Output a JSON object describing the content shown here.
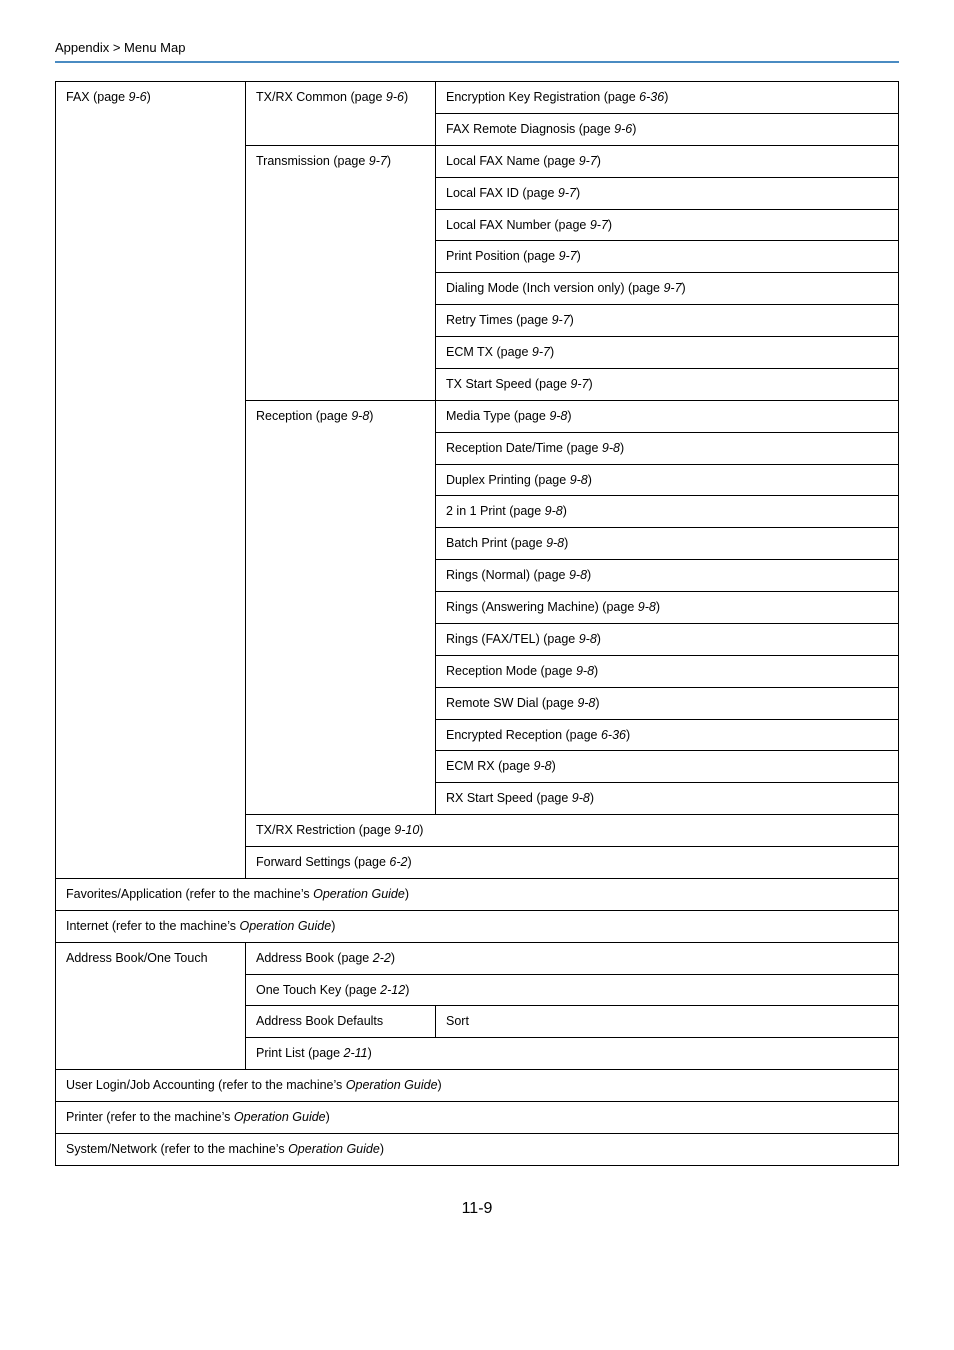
{
  "header": {
    "breadcrumb": "Appendix > Menu Map"
  },
  "colors": {
    "rule": "#4a8bc2",
    "border": "#000000",
    "text": "#000000",
    "background": "#ffffff"
  },
  "menu": {
    "fax": {
      "label": "FAX (page ",
      "page": "9-6",
      "close": ")",
      "txrx_common": {
        "label": "TX/RX Common (page ",
        "page": "9-6",
        "close": ")",
        "items": [
          {
            "text": "Encryption Key Registration (page ",
            "page": "6-36",
            "close": ")"
          },
          {
            "text": "FAX Remote Diagnosis (page ",
            "page": "9-6",
            "close": ")"
          }
        ]
      },
      "transmission": {
        "label": "Transmission (page ",
        "page": "9-7",
        "close": ")",
        "items": [
          {
            "text": "Local FAX Name (page ",
            "page": "9-7",
            "close": ")"
          },
          {
            "text": "Local FAX ID (page ",
            "page": "9-7",
            "close": ")"
          },
          {
            "text": "Local FAX Number (page ",
            "page": "9-7",
            "close": ")"
          },
          {
            "text": "Print Position (page ",
            "page": "9-7",
            "close": ")"
          },
          {
            "text": "Dialing Mode (Inch version only) (page ",
            "page": "9-7",
            "close": ")"
          },
          {
            "text": "Retry Times (page ",
            "page": "9-7",
            "close": ")"
          },
          {
            "text": "ECM TX (page ",
            "page": "9-7",
            "close": ")"
          },
          {
            "text": "TX Start Speed (page ",
            "page": "9-7",
            "close": ")"
          }
        ]
      },
      "reception": {
        "label": "Reception (page ",
        "page": "9-8",
        "close": ")",
        "items": [
          {
            "text": "Media Type (page ",
            "page": "9-8",
            "close": ")"
          },
          {
            "text": "Reception Date/Time (page ",
            "page": "9-8",
            "close": ")"
          },
          {
            "text": "Duplex Printing (page ",
            "page": "9-8",
            "close": ")"
          },
          {
            "text": "2 in 1 Print (page ",
            "page": "9-8",
            "close": ")"
          },
          {
            "text": "Batch Print (page ",
            "page": "9-8",
            "close": ")"
          },
          {
            "text": "Rings (Normal) (page ",
            "page": "9-8",
            "close": ")"
          },
          {
            "text": "Rings (Answering Machine) (page ",
            "page": "9-8",
            "close": ")"
          },
          {
            "text": "Rings (FAX/TEL) (page ",
            "page": "9-8",
            "close": ")"
          },
          {
            "text": "Reception Mode (page ",
            "page": "9-8",
            "close": ")"
          },
          {
            "text": "Remote SW Dial (page ",
            "page": "9-8",
            "close": ")"
          },
          {
            "text": "Encrypted Reception (page ",
            "page": "6-36",
            "close": ")"
          },
          {
            "text": "ECM RX (page ",
            "page": "9-8",
            "close": ")"
          },
          {
            "text": "RX Start Speed (page ",
            "page": "9-8",
            "close": ")"
          }
        ]
      },
      "txrx_restriction": {
        "text": "TX/RX Restriction (page ",
        "page": "9-10",
        "close": ")"
      },
      "forward": {
        "text": "Forward Settings (page ",
        "page": "6-2",
        "close": ")"
      }
    },
    "favorites": {
      "text": "Favorites/Application (refer to the machine’s ",
      "ital": "Operation Guide",
      "close": ")"
    },
    "internet": {
      "text": "Internet (refer to the machine’s ",
      "ital": "Operation Guide",
      "close": ")"
    },
    "address_book": {
      "label": "Address Book/One Touch",
      "rows": {
        "ab": {
          "text": "Address Book (page ",
          "page": "2-2",
          "close": ")"
        },
        "otk": {
          "text": "One Touch Key (page ",
          "page": "2-12",
          "close": ")"
        },
        "defaults_label": "Address Book Defaults",
        "defaults_val": "Sort",
        "printlist": {
          "text": "Print List (page ",
          "page": "2-11",
          "close": ")"
        }
      }
    },
    "user_login": {
      "text": "User Login/Job Accounting (refer to the machine’s ",
      "ital": "Operation Guide",
      "close": ")"
    },
    "printer": {
      "text": "Printer (refer to the machine’s ",
      "ital": "Operation Guide",
      "close": ")"
    },
    "system_network": {
      "text": "System/Network (refer to the machine’s ",
      "ital": "Operation Guide",
      "close": ")"
    }
  },
  "pagenum": "11-9"
}
